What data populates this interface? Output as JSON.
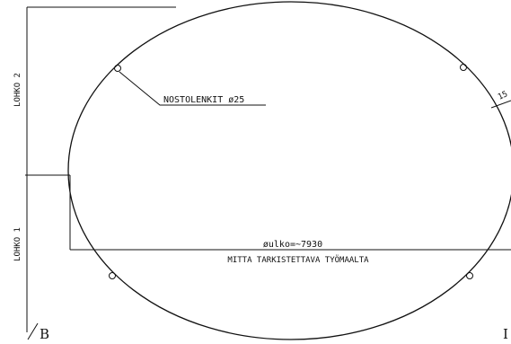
{
  "labels": {
    "lohko_2": "LOHKO 2",
    "lohko_1": "LOHKO 1",
    "lifting_lugs": "NOSTOLENKIT ø25",
    "outer_diameter": "øulko=~7930",
    "measure_on_site": "MITTA TARKISTETTAVA TYÖMAALTA",
    "section_left": "B",
    "section_right": "I",
    "edge_fragment": "15"
  }
}
